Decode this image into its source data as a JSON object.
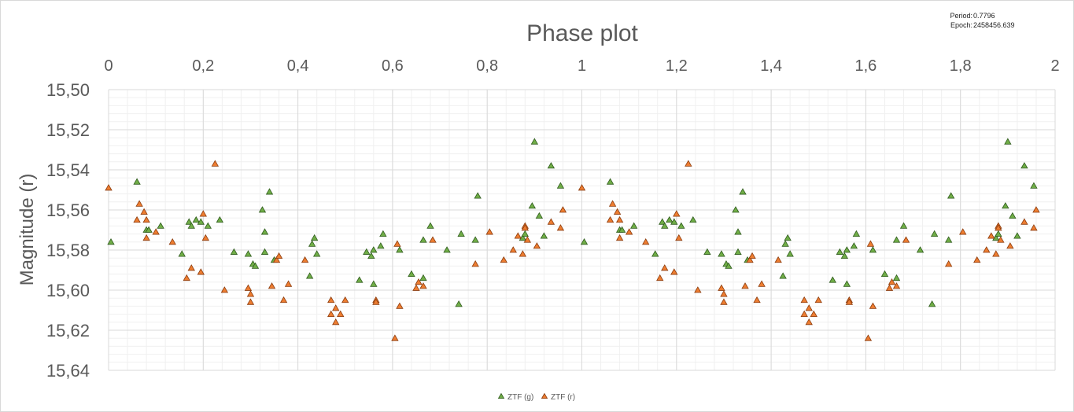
{
  "info": {
    "period_label": "Period:",
    "period_value": "0.7796",
    "epoch_label": "Epoch:",
    "epoch_value": "2458456.639"
  },
  "chart_data": {
    "type": "scatter",
    "title": "Phase plot",
    "xlabel": "",
    "ylabel": "Magnitude (r)",
    "xlim": [
      0,
      2
    ],
    "ylim": [
      15.5,
      15.64
    ],
    "y_reversed": true,
    "x_axis_position": "top",
    "x_ticks": [
      0,
      0.2,
      0.4,
      0.6,
      0.8,
      1,
      1.2,
      1.4,
      1.6,
      1.8,
      2
    ],
    "x_tick_labels": [
      "0",
      "0,2",
      "0,4",
      "0,6",
      "0,8",
      "1",
      "1,2",
      "1,4",
      "1,6",
      "1,8",
      "2"
    ],
    "y_ticks": [
      15.5,
      15.52,
      15.54,
      15.56,
      15.58,
      15.6,
      15.62,
      15.64
    ],
    "y_tick_labels": [
      "15,50",
      "15,52",
      "15,54",
      "15,56",
      "15,58",
      "15,60",
      "15,62",
      "15,64"
    ],
    "grid": true,
    "legend_position": "bottom",
    "series": [
      {
        "name": "ZTF (g)",
        "color": "#70ad47",
        "edge": "#2e5a1c",
        "marker": "triangle",
        "x": [
          0.005,
          0.06,
          0.08,
          0.085,
          0.11,
          0.155,
          0.17,
          0.175,
          0.185,
          0.195,
          0.21,
          0.235,
          0.265,
          0.295,
          0.305,
          0.31,
          0.325,
          0.33,
          0.33,
          0.34,
          0.35,
          0.425,
          0.43,
          0.435,
          0.44,
          0.53,
          0.545,
          0.555,
          0.56,
          0.56,
          0.575,
          0.58,
          0.615,
          0.64,
          0.665,
          0.665,
          0.68,
          0.715,
          0.74,
          0.745,
          0.775,
          0.78,
          0.875,
          0.88,
          0.895,
          0.9,
          0.91,
          0.92,
          0.935,
          0.955,
          1.005,
          1.06,
          1.08,
          1.085,
          1.11,
          1.155,
          1.17,
          1.175,
          1.185,
          1.195,
          1.21,
          1.235,
          1.265,
          1.295,
          1.305,
          1.31,
          1.325,
          1.33,
          1.33,
          1.34,
          1.35,
          1.425,
          1.43,
          1.435,
          1.44,
          1.53,
          1.545,
          1.555,
          1.56,
          1.56,
          1.575,
          1.58,
          1.615,
          1.64,
          1.665,
          1.665,
          1.68,
          1.715,
          1.74,
          1.745,
          1.775,
          1.78,
          1.875,
          1.88,
          1.895,
          1.9,
          1.91,
          1.92,
          1.935,
          1.955
        ],
        "y": [
          15.576,
          15.546,
          15.57,
          15.57,
          15.568,
          15.582,
          15.566,
          15.568,
          15.565,
          15.566,
          15.568,
          15.565,
          15.581,
          15.582,
          15.587,
          15.588,
          15.56,
          15.571,
          15.581,
          15.551,
          15.585,
          15.593,
          15.577,
          15.574,
          15.582,
          15.595,
          15.581,
          15.583,
          15.58,
          15.597,
          15.578,
          15.572,
          15.58,
          15.592,
          15.575,
          15.594,
          15.568,
          15.58,
          15.607,
          15.572,
          15.575,
          15.553,
          15.574,
          15.572,
          15.558,
          15.526,
          15.563,
          15.573,
          15.538,
          15.548,
          15.576,
          15.546,
          15.57,
          15.57,
          15.568,
          15.582,
          15.566,
          15.568,
          15.565,
          15.566,
          15.568,
          15.565,
          15.581,
          15.582,
          15.587,
          15.588,
          15.56,
          15.571,
          15.581,
          15.551,
          15.585,
          15.593,
          15.577,
          15.574,
          15.582,
          15.595,
          15.581,
          15.583,
          15.58,
          15.597,
          15.578,
          15.572,
          15.58,
          15.592,
          15.575,
          15.594,
          15.568,
          15.58,
          15.607,
          15.572,
          15.575,
          15.553,
          15.574,
          15.572,
          15.558,
          15.526,
          15.563,
          15.573,
          15.538,
          15.548
        ]
      },
      {
        "name": "ZTF (r)",
        "color": "#ed7d31",
        "edge": "#8a3a0c",
        "marker": "triangle",
        "x": [
          0.0,
          0.06,
          0.065,
          0.075,
          0.08,
          0.08,
          0.1,
          0.135,
          0.165,
          0.175,
          0.195,
          0.2,
          0.205,
          0.225,
          0.245,
          0.295,
          0.3,
          0.3,
          0.345,
          0.355,
          0.36,
          0.37,
          0.38,
          0.415,
          0.47,
          0.47,
          0.48,
          0.48,
          0.49,
          0.5,
          0.565,
          0.565,
          0.605,
          0.61,
          0.615,
          0.65,
          0.655,
          0.665,
          0.685,
          0.775,
          0.805,
          0.835,
          0.855,
          0.865,
          0.875,
          0.88,
          0.88,
          0.885,
          0.905,
          0.935,
          0.955,
          0.96,
          1.0,
          1.06,
          1.065,
          1.075,
          1.08,
          1.08,
          1.1,
          1.135,
          1.165,
          1.175,
          1.195,
          1.2,
          1.205,
          1.225,
          1.245,
          1.295,
          1.3,
          1.3,
          1.345,
          1.355,
          1.36,
          1.37,
          1.38,
          1.415,
          1.47,
          1.47,
          1.48,
          1.48,
          1.49,
          1.5,
          1.565,
          1.565,
          1.605,
          1.61,
          1.615,
          1.65,
          1.655,
          1.665,
          1.685,
          1.775,
          1.805,
          1.835,
          1.855,
          1.865,
          1.875,
          1.88,
          1.88,
          1.885,
          1.905,
          1.935,
          1.955,
          1.96
        ],
        "y": [
          15.549,
          15.565,
          15.557,
          15.561,
          15.565,
          15.574,
          15.571,
          15.576,
          15.594,
          15.589,
          15.591,
          15.562,
          15.574,
          15.537,
          15.6,
          15.599,
          15.602,
          15.606,
          15.598,
          15.585,
          15.583,
          15.605,
          15.597,
          15.585,
          15.605,
          15.612,
          15.609,
          15.616,
          15.612,
          15.605,
          15.605,
          15.606,
          15.624,
          15.577,
          15.608,
          15.599,
          15.596,
          15.598,
          15.575,
          15.587,
          15.571,
          15.585,
          15.58,
          15.573,
          15.582,
          15.568,
          15.569,
          15.575,
          15.578,
          15.566,
          15.569,
          15.56,
          15.549,
          15.565,
          15.557,
          15.561,
          15.565,
          15.574,
          15.571,
          15.576,
          15.594,
          15.589,
          15.591,
          15.562,
          15.574,
          15.537,
          15.6,
          15.599,
          15.602,
          15.606,
          15.598,
          15.585,
          15.583,
          15.605,
          15.597,
          15.585,
          15.605,
          15.612,
          15.609,
          15.616,
          15.612,
          15.605,
          15.605,
          15.606,
          15.624,
          15.577,
          15.608,
          15.599,
          15.596,
          15.598,
          15.575,
          15.587,
          15.571,
          15.585,
          15.58,
          15.573,
          15.582,
          15.568,
          15.569,
          15.575,
          15.578,
          15.566,
          15.569,
          15.56
        ]
      }
    ]
  }
}
